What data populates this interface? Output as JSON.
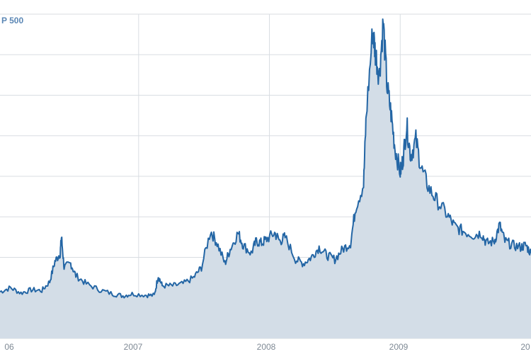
{
  "chart_data": {
    "type": "area",
    "series_label": "P 500",
    "x_ticks": [
      "06",
      "2007",
      "2008",
      "2009",
      "20"
    ],
    "grid": true,
    "colors": {
      "line": "#2466a5",
      "fill": "#d3dde7",
      "grid": "#d9dde2"
    },
    "series": [
      {
        "values": [
          [
            2005.94,
            11.5
          ],
          [
            2006.02,
            12.5
          ],
          [
            2006.1,
            11.2
          ],
          [
            2006.18,
            12.0
          ],
          [
            2006.26,
            11.8
          ],
          [
            2006.32,
            14.0
          ],
          [
            2006.36,
            19.0
          ],
          [
            2006.4,
            21.0
          ],
          [
            2006.41,
            25.0
          ],
          [
            2006.43,
            17.5
          ],
          [
            2006.48,
            18.5
          ],
          [
            2006.52,
            15.5
          ],
          [
            2006.6,
            13.5
          ],
          [
            2006.7,
            12.0
          ],
          [
            2006.8,
            11.0
          ],
          [
            2006.88,
            10.5
          ],
          [
            2006.95,
            11.0
          ],
          [
            2007.05,
            10.7
          ],
          [
            2007.12,
            10.6
          ],
          [
            2007.15,
            15.5
          ],
          [
            2007.18,
            13.0
          ],
          [
            2007.26,
            13.0
          ],
          [
            2007.34,
            13.5
          ],
          [
            2007.42,
            15.0
          ],
          [
            2007.48,
            17.5
          ],
          [
            2007.55,
            26.5
          ],
          [
            2007.6,
            23.5
          ],
          [
            2007.66,
            18.5
          ],
          [
            2007.7,
            22.0
          ],
          [
            2007.76,
            26.0
          ],
          [
            2007.8,
            23.0
          ],
          [
            2007.86,
            21.0
          ],
          [
            2007.9,
            24.0
          ],
          [
            2007.94,
            23.5
          ],
          [
            2007.98,
            24.5
          ],
          [
            2008.04,
            26.0
          ],
          [
            2008.08,
            24.0
          ],
          [
            2008.12,
            25.0
          ],
          [
            2008.2,
            19.5
          ],
          [
            2008.26,
            18.5
          ],
          [
            2008.32,
            20.0
          ],
          [
            2008.38,
            22.5
          ],
          [
            2008.44,
            20.5
          ],
          [
            2008.5,
            19.5
          ],
          [
            2008.56,
            22.0
          ],
          [
            2008.62,
            23.5
          ],
          [
            2008.66,
            32.5
          ],
          [
            2008.72,
            38.0
          ],
          [
            2008.74,
            55.0
          ],
          [
            2008.79,
            76.0
          ],
          [
            2008.81,
            70.5
          ],
          [
            2008.84,
            65.0
          ],
          [
            2008.87,
            78.0
          ],
          [
            2008.9,
            62.0
          ],
          [
            2008.93,
            55.5
          ],
          [
            2008.96,
            47.0
          ],
          [
            2009.0,
            41.0
          ],
          [
            2009.02,
            44.0
          ],
          [
            2009.05,
            52.5
          ],
          [
            2009.08,
            45.0
          ],
          [
            2009.12,
            49.0
          ],
          [
            2009.16,
            42.0
          ],
          [
            2009.22,
            37.0
          ],
          [
            2009.28,
            34.0
          ],
          [
            2009.36,
            30.5
          ],
          [
            2009.42,
            27.5
          ],
          [
            2009.48,
            26.5
          ],
          [
            2009.56,
            25.5
          ],
          [
            2009.62,
            26.0
          ],
          [
            2009.66,
            23.5
          ],
          [
            2009.72,
            24.0
          ],
          [
            2009.76,
            28.0
          ],
          [
            2009.8,
            24.0
          ],
          [
            2009.86,
            23.0
          ],
          [
            2009.92,
            22.5
          ],
          [
            2009.96,
            23.0
          ],
          [
            2010.0,
            21.0
          ]
        ]
      }
    ]
  }
}
